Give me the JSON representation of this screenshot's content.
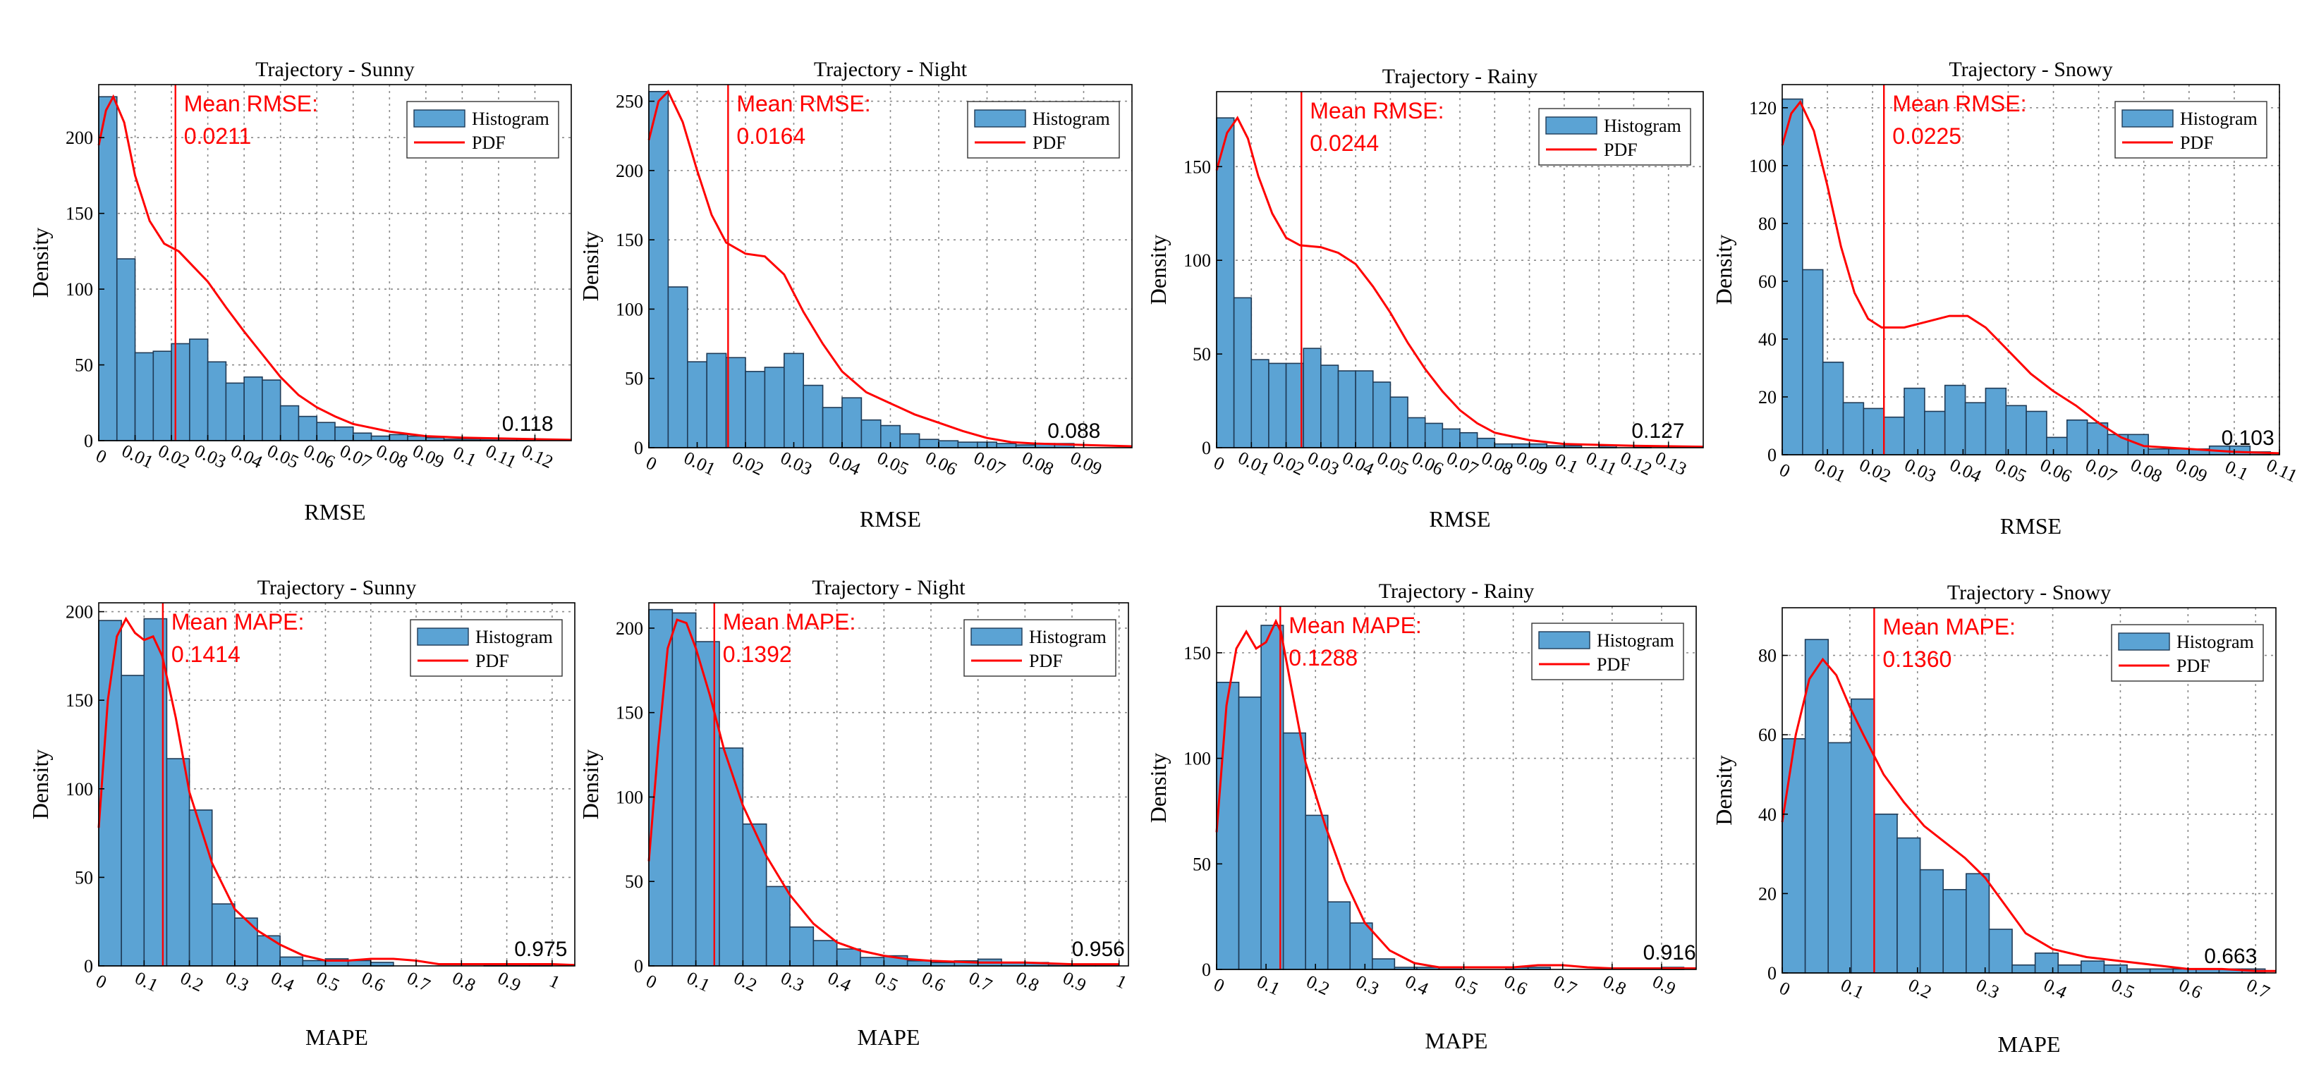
{
  "style": {
    "bar_color": "#5ba3d4",
    "bar_edge": "#1f3b57",
    "pdf_color": "#ff0000",
    "mean_color": "#ff0000"
  },
  "legend": {
    "histogram": "Histogram",
    "pdf": "PDF"
  },
  "chart_data": [
    {
      "type": "bar",
      "title": "Trajectory - Sunny",
      "xlabel": "RMSE",
      "ylabel": "Density",
      "xlim": [
        0,
        0.13
      ],
      "ylim": [
        0,
        235
      ],
      "xticks": [
        0,
        0.01,
        0.02,
        0.03,
        0.04,
        0.05,
        0.06,
        0.07,
        0.08,
        0.09,
        0.1,
        0.11,
        0.12
      ],
      "xtick_labels": [
        "0",
        "0.01",
        "0.02",
        "0.03",
        "0.04",
        "0.05",
        "0.06",
        "0.07",
        "0.08",
        "0.09",
        "0.1",
        "0.11",
        "0.12"
      ],
      "yticks": [
        0,
        50,
        100,
        150,
        200
      ],
      "bin_start": 0,
      "bin_width": 0.005,
      "values": [
        227,
        120,
        58,
        59,
        64,
        67,
        52,
        38,
        42,
        40,
        23,
        16,
        12,
        9,
        5,
        3,
        4,
        3,
        2,
        1,
        1,
        1,
        1,
        1
      ],
      "pdf": [
        [
          0,
          195
        ],
        [
          0.002,
          218
        ],
        [
          0.004,
          227
        ],
        [
          0.007,
          210
        ],
        [
          0.01,
          175
        ],
        [
          0.014,
          145
        ],
        [
          0.018,
          130
        ],
        [
          0.022,
          125
        ],
        [
          0.026,
          115
        ],
        [
          0.03,
          105
        ],
        [
          0.035,
          88
        ],
        [
          0.04,
          72
        ],
        [
          0.045,
          57
        ],
        [
          0.05,
          42
        ],
        [
          0.055,
          30
        ],
        [
          0.06,
          22
        ],
        [
          0.065,
          16
        ],
        [
          0.07,
          11
        ],
        [
          0.08,
          6
        ],
        [
          0.09,
          3
        ],
        [
          0.1,
          2
        ],
        [
          0.12,
          1
        ],
        [
          0.13,
          0.5
        ]
      ],
      "mean_label": "Mean RMSE:",
      "mean_value": "0.0211",
      "mean": 0.0211,
      "max_label": "0.118",
      "max": 0.118,
      "hist_end": 0.12
    },
    {
      "type": "bar",
      "title": "Trajectory - Night",
      "xlabel": "RMSE",
      "ylabel": "Density",
      "xlim": [
        0,
        0.1
      ],
      "ylim": [
        0,
        262
      ],
      "xticks": [
        0,
        0.01,
        0.02,
        0.03,
        0.04,
        0.05,
        0.06,
        0.07,
        0.08,
        0.09
      ],
      "xtick_labels": [
        "0",
        "0.01",
        "0.02",
        "0.03",
        "0.04",
        "0.05",
        "0.06",
        "0.07",
        "0.08",
        "0.09"
      ],
      "yticks": [
        0,
        50,
        100,
        150,
        200,
        250
      ],
      "bin_start": 0,
      "bin_width": 0.004,
      "values": [
        257,
        116,
        62,
        68,
        65,
        55,
        58,
        68,
        45,
        29,
        36,
        20,
        16,
        10,
        6,
        5,
        4,
        4,
        3,
        2,
        3,
        3
      ],
      "pdf": [
        [
          0,
          222
        ],
        [
          0.002,
          250
        ],
        [
          0.004,
          257
        ],
        [
          0.007,
          235
        ],
        [
          0.01,
          200
        ],
        [
          0.013,
          168
        ],
        [
          0.016,
          148
        ],
        [
          0.02,
          140
        ],
        [
          0.024,
          138
        ],
        [
          0.028,
          125
        ],
        [
          0.032,
          98
        ],
        [
          0.036,
          75
        ],
        [
          0.04,
          55
        ],
        [
          0.045,
          40
        ],
        [
          0.05,
          32
        ],
        [
          0.055,
          24
        ],
        [
          0.06,
          18
        ],
        [
          0.065,
          12
        ],
        [
          0.07,
          7
        ],
        [
          0.075,
          4
        ],
        [
          0.08,
          3
        ],
        [
          0.09,
          2
        ],
        [
          0.1,
          1
        ]
      ],
      "mean_label": "Mean RMSE:",
      "mean_value": "0.0164",
      "mean": 0.0164,
      "max_label": "0.088",
      "max": 0.088,
      "hist_end": 0.088
    },
    {
      "type": "bar",
      "title": "Trajectory - Rainy",
      "xlabel": "RMSE",
      "ylabel": "Density",
      "xlim": [
        0,
        0.14
      ],
      "ylim": [
        0,
        190
      ],
      "xticks": [
        0,
        0.01,
        0.02,
        0.03,
        0.04,
        0.05,
        0.06,
        0.07,
        0.08,
        0.09,
        0.1,
        0.11,
        0.12,
        0.13
      ],
      "xtick_labels": [
        "0",
        "0.01",
        "0.02",
        "0.03",
        "0.04",
        "0.05",
        "0.06",
        "0.07",
        "0.08",
        "0.09",
        "0.1",
        "0.11",
        "0.12",
        "0.13"
      ],
      "yticks": [
        0,
        50,
        100,
        150
      ],
      "bin_start": 0,
      "bin_width": 0.005,
      "values": [
        176,
        80,
        47,
        45,
        45,
        53,
        44,
        41,
        41,
        35,
        27,
        16,
        13,
        10,
        8,
        5,
        2,
        2,
        2,
        1,
        1,
        0,
        1,
        0,
        1
      ],
      "pdf": [
        [
          0,
          148
        ],
        [
          0.003,
          168
        ],
        [
          0.006,
          176
        ],
        [
          0.009,
          165
        ],
        [
          0.012,
          145
        ],
        [
          0.016,
          125
        ],
        [
          0.02,
          112
        ],
        [
          0.024,
          108
        ],
        [
          0.03,
          107
        ],
        [
          0.035,
          104
        ],
        [
          0.04,
          98
        ],
        [
          0.045,
          86
        ],
        [
          0.05,
          72
        ],
        [
          0.055,
          56
        ],
        [
          0.06,
          42
        ],
        [
          0.065,
          30
        ],
        [
          0.07,
          20
        ],
        [
          0.075,
          13
        ],
        [
          0.08,
          8
        ],
        [
          0.09,
          4
        ],
        [
          0.1,
          2
        ],
        [
          0.12,
          1
        ],
        [
          0.14,
          0.5
        ]
      ],
      "mean_label": "Mean RMSE:",
      "mean_value": "0.0244",
      "mean": 0.0244,
      "max_label": "0.127",
      "max": 0.127,
      "hist_end": 0.125
    },
    {
      "type": "bar",
      "title": "Trajectory - Snowy",
      "xlabel": "RMSE",
      "ylabel": "Density",
      "xlim": [
        0,
        0.11
      ],
      "ylim": [
        0,
        128
      ],
      "xticks": [
        0,
        0.01,
        0.02,
        0.03,
        0.04,
        0.05,
        0.06,
        0.07,
        0.08,
        0.09,
        0.1,
        0.11
      ],
      "xtick_labels": [
        "0",
        "0.01",
        "0.02",
        "0.03",
        "0.04",
        "0.05",
        "0.06",
        "0.07",
        "0.08",
        "0.09",
        "0.1",
        "0.11"
      ],
      "yticks": [
        0,
        20,
        40,
        60,
        80,
        100,
        120
      ],
      "bin_start": 0,
      "bin_width": 0.0045,
      "values": [
        123,
        64,
        32,
        18,
        16,
        13,
        23,
        15,
        24,
        18,
        23,
        17,
        15,
        6,
        12,
        11,
        7,
        7,
        2,
        2,
        2,
        3,
        3,
        1
      ],
      "pdf": [
        [
          0,
          107
        ],
        [
          0.002,
          118
        ],
        [
          0.004,
          122
        ],
        [
          0.007,
          112
        ],
        [
          0.01,
          93
        ],
        [
          0.013,
          72
        ],
        [
          0.016,
          56
        ],
        [
          0.019,
          47
        ],
        [
          0.022,
          44
        ],
        [
          0.027,
          44
        ],
        [
          0.032,
          46
        ],
        [
          0.037,
          48
        ],
        [
          0.041,
          48
        ],
        [
          0.045,
          44
        ],
        [
          0.05,
          36
        ],
        [
          0.055,
          28
        ],
        [
          0.06,
          22
        ],
        [
          0.065,
          17
        ],
        [
          0.07,
          11
        ],
        [
          0.075,
          6
        ],
        [
          0.08,
          3
        ],
        [
          0.09,
          2
        ],
        [
          0.1,
          1
        ],
        [
          0.11,
          0.5
        ]
      ],
      "mean_label": "Mean RMSE:",
      "mean_value": "0.0225",
      "mean": 0.0225,
      "max_label": "0.103",
      "max": 0.103,
      "hist_end": 0.108
    },
    {
      "type": "bar",
      "title": "Trajectory - Sunny",
      "xlabel": "MAPE",
      "ylabel": "Density",
      "xlim": [
        0,
        1.05
      ],
      "ylim": [
        0,
        205
      ],
      "xticks": [
        0,
        0.1,
        0.2,
        0.3,
        0.4,
        0.5,
        0.6,
        0.7,
        0.8,
        0.9,
        1
      ],
      "xtick_labels": [
        "0",
        "0.1",
        "0.2",
        "0.3",
        "0.4",
        "0.5",
        "0.6",
        "0.7",
        "0.8",
        "0.9",
        "1"
      ],
      "yticks": [
        0,
        50,
        100,
        150,
        200
      ],
      "bin_start": 0,
      "bin_width": 0.05,
      "values": [
        195,
        164,
        196,
        117,
        88,
        35,
        27,
        17,
        5,
        3,
        4,
        3,
        2,
        0,
        0,
        0,
        0,
        1,
        1,
        1
      ],
      "pdf": [
        [
          0,
          78
        ],
        [
          0.02,
          150
        ],
        [
          0.04,
          186
        ],
        [
          0.06,
          196
        ],
        [
          0.08,
          188
        ],
        [
          0.1,
          184
        ],
        [
          0.12,
          186
        ],
        [
          0.14,
          175
        ],
        [
          0.17,
          140
        ],
        [
          0.2,
          98
        ],
        [
          0.25,
          58
        ],
        [
          0.3,
          32
        ],
        [
          0.35,
          20
        ],
        [
          0.4,
          12
        ],
        [
          0.45,
          6
        ],
        [
          0.5,
          3
        ],
        [
          0.55,
          3
        ],
        [
          0.6,
          4
        ],
        [
          0.65,
          4
        ],
        [
          0.7,
          3
        ],
        [
          0.75,
          1
        ],
        [
          0.8,
          1
        ],
        [
          0.85,
          1
        ],
        [
          0.9,
          1
        ],
        [
          0.95,
          1
        ],
        [
          1,
          1
        ],
        [
          1.05,
          0.5
        ]
      ],
      "mean_label": "Mean MAPE:",
      "mean_value": "0.1414",
      "mean": 0.1414,
      "max_label": "0.975",
      "max": 0.975,
      "hist_end": 1.0
    },
    {
      "type": "bar",
      "title": "Trajectory - Night",
      "xlabel": "MAPE",
      "ylabel": "Density",
      "xlim": [
        0,
        1.02
      ],
      "ylim": [
        0,
        215
      ],
      "xticks": [
        0,
        0.1,
        0.2,
        0.3,
        0.4,
        0.5,
        0.6,
        0.7,
        0.8,
        0.9,
        1
      ],
      "xtick_labels": [
        "0",
        "0.1",
        "0.2",
        "0.3",
        "0.4",
        "0.5",
        "0.6",
        "0.7",
        "0.8",
        "0.9",
        "1"
      ],
      "yticks": [
        0,
        50,
        100,
        150,
        200
      ],
      "bin_start": 0,
      "bin_width": 0.05,
      "values": [
        211,
        209,
        192,
        129,
        84,
        47,
        23,
        15,
        10,
        5,
        6,
        3,
        2,
        3,
        4,
        2,
        2,
        1,
        1,
        1
      ],
      "pdf": [
        [
          0,
          62
        ],
        [
          0.02,
          130
        ],
        [
          0.04,
          188
        ],
        [
          0.06,
          205
        ],
        [
          0.08,
          203
        ],
        [
          0.1,
          188
        ],
        [
          0.13,
          160
        ],
        [
          0.16,
          128
        ],
        [
          0.2,
          95
        ],
        [
          0.25,
          65
        ],
        [
          0.3,
          42
        ],
        [
          0.35,
          25
        ],
        [
          0.4,
          14
        ],
        [
          0.45,
          9
        ],
        [
          0.5,
          6
        ],
        [
          0.55,
          4
        ],
        [
          0.6,
          3
        ],
        [
          0.7,
          2
        ],
        [
          0.8,
          2
        ],
        [
          0.9,
          1
        ],
        [
          1,
          1
        ]
      ],
      "mean_label": "Mean MAPE:",
      "mean_value": "0.1392",
      "mean": 0.1392,
      "max_label": "0.956",
      "max": 0.956,
      "hist_end": 1.0
    },
    {
      "type": "bar",
      "title": "Trajectory - Rainy",
      "xlabel": "MAPE",
      "ylabel": "Density",
      "xlim": [
        0,
        0.97
      ],
      "ylim": [
        0,
        172
      ],
      "xticks": [
        0,
        0.1,
        0.2,
        0.3,
        0.4,
        0.5,
        0.6,
        0.7,
        0.8,
        0.9
      ],
      "xtick_labels": [
        "0",
        "0.1",
        "0.2",
        "0.3",
        "0.4",
        "0.5",
        "0.6",
        "0.7",
        "0.8",
        "0.9"
      ],
      "yticks": [
        0,
        50,
        100,
        150
      ],
      "bin_start": 0,
      "bin_width": 0.045,
      "values": [
        136,
        129,
        163,
        112,
        73,
        32,
        22,
        5,
        1,
        1,
        1,
        0,
        0,
        1,
        1,
        0,
        0,
        0,
        0,
        0,
        1
      ],
      "pdf": [
        [
          0,
          65
        ],
        [
          0.02,
          125
        ],
        [
          0.04,
          152
        ],
        [
          0.06,
          160
        ],
        [
          0.08,
          152
        ],
        [
          0.1,
          155
        ],
        [
          0.12,
          165
        ],
        [
          0.13,
          160
        ],
        [
          0.15,
          135
        ],
        [
          0.18,
          98
        ],
        [
          0.22,
          68
        ],
        [
          0.26,
          42
        ],
        [
          0.3,
          22
        ],
        [
          0.35,
          9
        ],
        [
          0.4,
          3
        ],
        [
          0.45,
          1
        ],
        [
          0.5,
          1
        ],
        [
          0.6,
          1
        ],
        [
          0.65,
          2
        ],
        [
          0.7,
          2
        ],
        [
          0.75,
          1
        ],
        [
          0.8,
          0.5
        ],
        [
          0.9,
          0.5
        ],
        [
          0.97,
          0.5
        ]
      ],
      "mean_label": "Mean MAPE:",
      "mean_value": "0.1288",
      "mean": 0.1288,
      "max_label": "0.916",
      "max": 0.916,
      "hist_end": 0.945
    },
    {
      "type": "bar",
      "title": "Trajectory - Snowy",
      "xlabel": "MAPE",
      "ylabel": "Density",
      "xlim": [
        0,
        0.73
      ],
      "ylim": [
        0,
        92
      ],
      "xticks": [
        0,
        0.1,
        0.2,
        0.3,
        0.4,
        0.5,
        0.6,
        0.7
      ],
      "xtick_labels": [
        "0",
        "0.1",
        "0.2",
        "0.3",
        "0.4",
        "0.5",
        "0.6",
        "0.7"
      ],
      "yticks": [
        0,
        20,
        40,
        60,
        80
      ],
      "bin_start": 0,
      "bin_width": 0.034,
      "values": [
        59,
        84,
        58,
        69,
        40,
        34,
        26,
        21,
        25,
        11,
        2,
        5,
        2,
        3,
        2,
        1,
        1,
        1,
        1,
        1,
        1
      ],
      "pdf": [
        [
          0,
          38
        ],
        [
          0.02,
          60
        ],
        [
          0.04,
          74
        ],
        [
          0.06,
          79
        ],
        [
          0.08,
          75
        ],
        [
          0.1,
          67
        ],
        [
          0.12,
          60
        ],
        [
          0.15,
          50
        ],
        [
          0.18,
          43
        ],
        [
          0.21,
          37
        ],
        [
          0.24,
          33
        ],
        [
          0.27,
          29
        ],
        [
          0.3,
          24
        ],
        [
          0.33,
          17
        ],
        [
          0.36,
          10
        ],
        [
          0.4,
          6
        ],
        [
          0.45,
          4
        ],
        [
          0.5,
          3
        ],
        [
          0.55,
          2
        ],
        [
          0.6,
          1
        ],
        [
          0.65,
          1
        ],
        [
          0.7,
          0.5
        ],
        [
          0.73,
          0.5
        ]
      ],
      "mean_label": "Mean MAPE:",
      "mean_value": "0.1360",
      "mean": 0.136,
      "max_label": "0.663",
      "max": 0.663,
      "hist_end": 0.714
    }
  ]
}
